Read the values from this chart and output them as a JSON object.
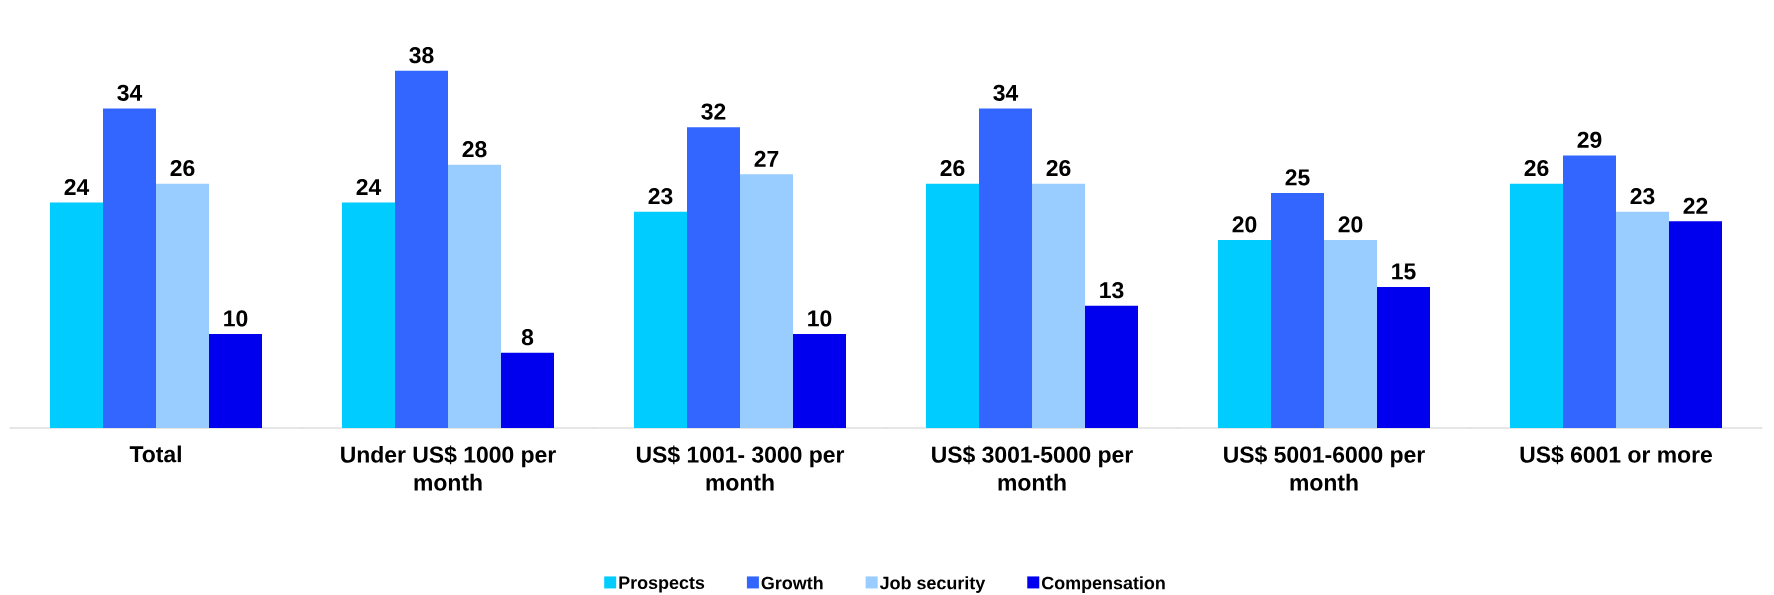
{
  "chart_data": {
    "type": "bar",
    "categories": [
      "Total",
      "Under US$ 1000 per month",
      "US$ 1001- 3000 per month",
      "US$ 3001-5000 per month",
      "US$ 5001-6000 per month",
      "US$ 6001 or more"
    ],
    "series": [
      {
        "name": "Prospects",
        "color": "#00ccff",
        "values": [
          24,
          24,
          23,
          26,
          20,
          26
        ]
      },
      {
        "name": "Growth",
        "color": "#3366ff",
        "values": [
          34,
          38,
          32,
          34,
          25,
          29
        ]
      },
      {
        "name": "Job security",
        "color": "#99ccff",
        "values": [
          26,
          28,
          27,
          26,
          20,
          23
        ]
      },
      {
        "name": "Compensation",
        "color": "#0000ee",
        "values": [
          10,
          8,
          10,
          13,
          15,
          22
        ]
      }
    ],
    "data_labels": true,
    "legend": "bottom"
  }
}
